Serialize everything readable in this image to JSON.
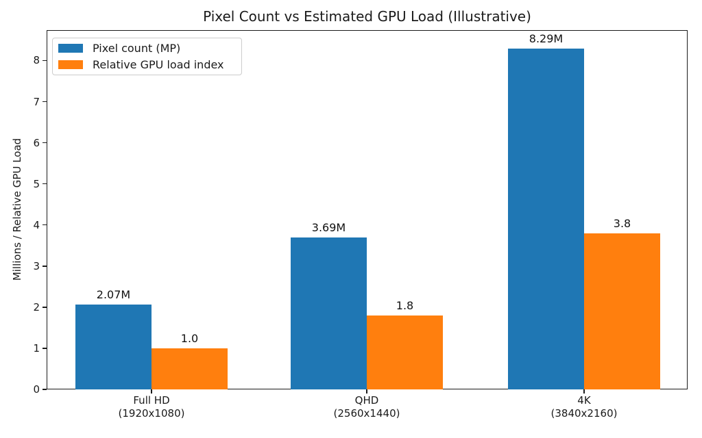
{
  "chart_data": {
    "type": "bar",
    "title": "Pixel Count vs Estimated GPU Load (Illustrative)",
    "xlabel": "",
    "ylabel": "Millions / Relative GPU Load",
    "ylim": [
      0,
      8.74
    ],
    "yticks": [
      0,
      1,
      2,
      3,
      4,
      5,
      6,
      7,
      8
    ],
    "grid": false,
    "legend_position": "upper-left",
    "categories": [
      [
        "Full HD",
        "(1920x1080)"
      ],
      [
        "QHD",
        "(2560x1440)"
      ],
      [
        "4K",
        "(3840x2160)"
      ]
    ],
    "series": [
      {
        "name": "Pixel count (MP)",
        "color": "#1f77b4",
        "values": [
          2.07,
          3.69,
          8.29
        ],
        "labels": [
          "2.07M",
          "3.69M",
          "8.29M"
        ]
      },
      {
        "name": "Relative GPU load index",
        "color": "#ff7f0e",
        "values": [
          1.0,
          1.8,
          3.8
        ],
        "labels": [
          "1.0",
          "1.8",
          "3.8"
        ]
      }
    ]
  }
}
